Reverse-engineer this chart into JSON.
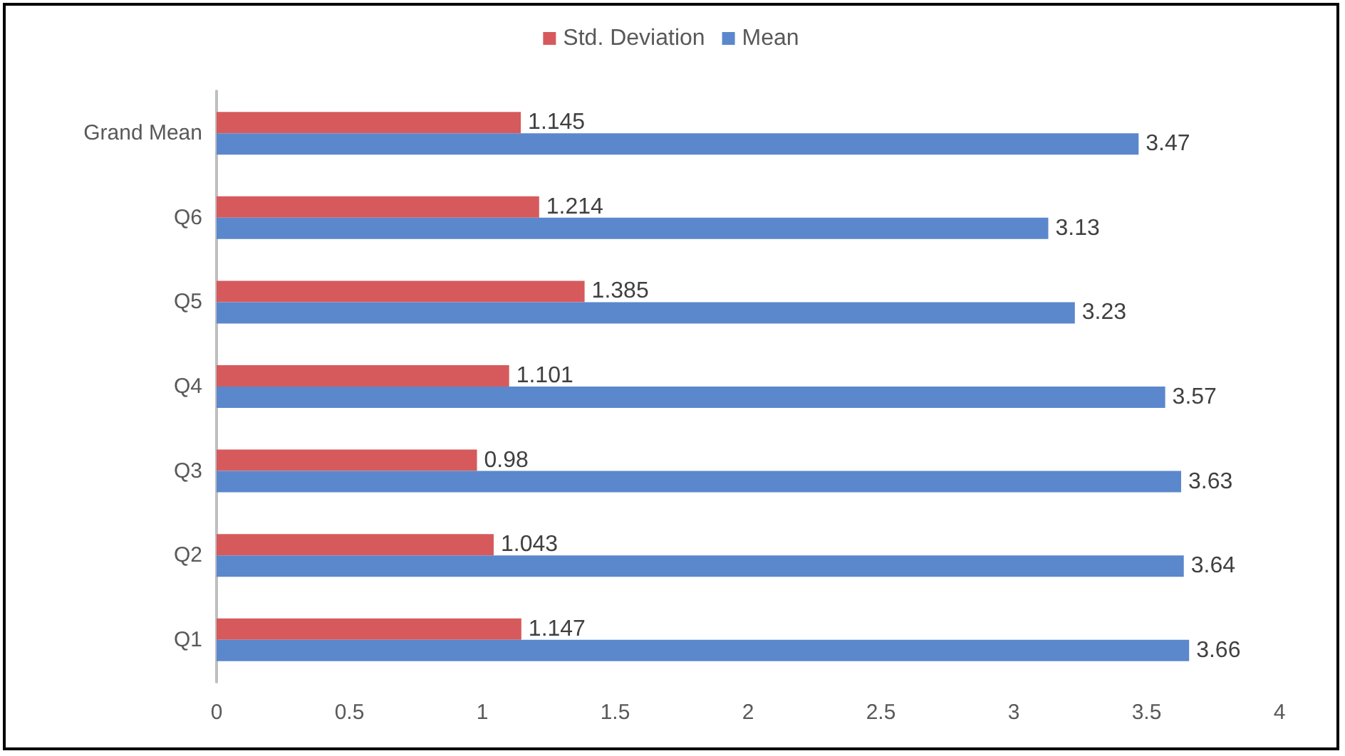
{
  "chart_data": {
    "type": "bar",
    "orientation": "horizontal",
    "categories": [
      "Grand Mean",
      "Q6",
      "Q5",
      "Q4",
      "Q3",
      "Q2",
      "Q1"
    ],
    "series": [
      {
        "name": "Std. Deviation",
        "color": "#d65a5c",
        "values": [
          1.145,
          1.214,
          1.385,
          1.101,
          0.98,
          1.043,
          1.147
        ]
      },
      {
        "name": "Mean",
        "color": "#5b87cc",
        "values": [
          3.47,
          3.13,
          3.23,
          3.57,
          3.63,
          3.64,
          3.66
        ]
      }
    ],
    "xlim": [
      0,
      4
    ],
    "xticks": [
      0,
      0.5,
      1,
      1.5,
      2,
      2.5,
      3,
      3.5,
      4
    ],
    "data_labels": true,
    "legend": "top"
  }
}
